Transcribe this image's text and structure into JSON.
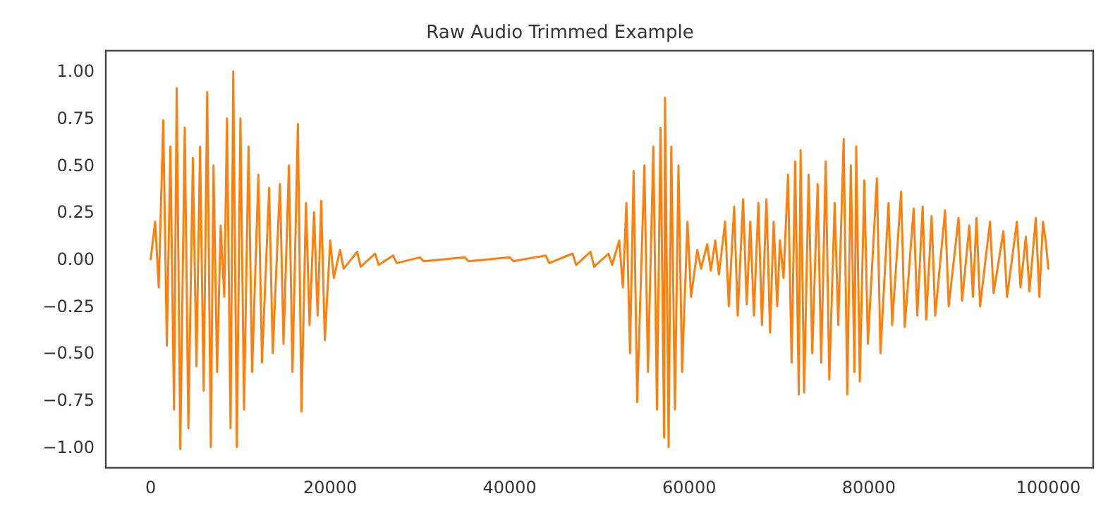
{
  "chart_data": {
    "type": "line",
    "title": "Raw Audio Trimmed Example",
    "x": [
      0,
      500,
      900,
      1400,
      1800,
      2200,
      2600,
      2900,
      3300,
      3800,
      4200,
      4700,
      5100,
      5500,
      5900,
      6300,
      6700,
      7000,
      7400,
      7800,
      8200,
      8500,
      8900,
      9200,
      9600,
      10000,
      10400,
      10900,
      11300,
      12000,
      12400,
      13200,
      13600,
      14400,
      14800,
      15400,
      15800,
      16400,
      16800,
      17300,
      17700,
      18200,
      18600,
      19000,
      19400,
      20000,
      20400,
      21100,
      21500,
      23000,
      23400,
      25000,
      25400,
      27000,
      27400,
      30000,
      30400,
      35000,
      35400,
      40000,
      40400,
      44000,
      44400,
      47000,
      47400,
      49000,
      49400,
      51000,
      51400,
      52200,
      52600,
      53000,
      53400,
      53800,
      54200,
      55000,
      55400,
      56000,
      56400,
      56800,
      57200,
      57300,
      57700,
      58000,
      58400,
      58800,
      59200,
      59800,
      60200,
      60900,
      61300,
      62000,
      62400,
      62900,
      63300,
      64000,
      64400,
      65000,
      65400,
      66000,
      66400,
      66800,
      67200,
      67700,
      68100,
      68600,
      69000,
      69400,
      69800,
      70100,
      70500,
      71000,
      71400,
      71800,
      72200,
      72400,
      72800,
      73300,
      73700,
      74300,
      74700,
      75200,
      75600,
      76200,
      76600,
      77200,
      77600,
      78000,
      78400,
      78600,
      79000,
      79500,
      79900,
      80900,
      81300,
      82200,
      82600,
      83600,
      84000,
      85000,
      85400,
      86000,
      86400,
      87000,
      87400,
      88500,
      88900,
      90000,
      90400,
      91200,
      91600,
      92000,
      92400,
      93500,
      93900,
      95000,
      95400,
      96500,
      96900,
      97500,
      97900,
      98600,
      99000,
      99400,
      99700,
      100000
    ],
    "series": [
      {
        "color": "#fd7f0e",
        "values": [
          0,
          0.2,
          -0.15,
          0.74,
          -0.46,
          0.6,
          -0.8,
          0.91,
          -1.01,
          0.7,
          -0.9,
          0.54,
          -0.57,
          0.6,
          -0.7,
          0.89,
          -1.0,
          0.5,
          -0.6,
          0.18,
          -0.2,
          0.75,
          -0.9,
          1.0,
          -1.0,
          0.75,
          -0.8,
          0.6,
          -0.6,
          0.45,
          -0.55,
          0.38,
          -0.5,
          0.4,
          -0.45,
          0.5,
          -0.6,
          0.72,
          -0.81,
          0.3,
          -0.35,
          0.25,
          -0.3,
          0.31,
          -0.43,
          0.1,
          -0.1,
          0.05,
          -0.05,
          0.04,
          -0.04,
          0.03,
          -0.03,
          0.02,
          -0.02,
          0.01,
          -0.01,
          0.01,
          -0.01,
          0.01,
          -0.01,
          0.02,
          -0.02,
          0.03,
          -0.03,
          0.04,
          -0.04,
          0.03,
          -0.03,
          0.1,
          -0.15,
          0.3,
          -0.5,
          0.47,
          -0.76,
          0.5,
          -0.6,
          0.6,
          -0.8,
          0.7,
          -0.95,
          0.86,
          -1.0,
          0.6,
          -0.8,
          0.5,
          -0.6,
          0.2,
          -0.2,
          0.05,
          -0.05,
          0.08,
          -0.06,
          0.1,
          -0.08,
          0.2,
          -0.25,
          0.28,
          -0.3,
          0.32,
          -0.24,
          0.2,
          -0.3,
          0.3,
          -0.35,
          0.32,
          -0.39,
          0.2,
          -0.25,
          0.1,
          -0.1,
          0.45,
          -0.55,
          0.52,
          -0.72,
          0.58,
          -0.71,
          0.45,
          -0.5,
          0.4,
          -0.55,
          0.52,
          -0.64,
          0.3,
          -0.35,
          0.64,
          -0.72,
          0.5,
          -0.6,
          0.6,
          -0.65,
          0.42,
          -0.45,
          0.43,
          -0.5,
          0.3,
          -0.35,
          0.36,
          -0.36,
          0.27,
          -0.3,
          0.28,
          -0.32,
          0.23,
          -0.3,
          0.26,
          -0.25,
          0.22,
          -0.22,
          0.18,
          -0.2,
          0.22,
          -0.25,
          0.2,
          -0.18,
          0.15,
          -0.2,
          0.2,
          -0.15,
          0.12,
          -0.17,
          0.22,
          -0.2,
          0.2,
          0.1,
          -0.05
        ]
      }
    ],
    "xlim": [
      -5000,
      105000
    ],
    "xticks": [
      0,
      20000,
      40000,
      60000,
      80000,
      100000
    ],
    "ylim": [
      -1.11,
      1.11
    ],
    "yticks": [
      {
        "value": -1,
        "label": "−1.00"
      },
      {
        "value": -0.75,
        "label": "−0.75"
      },
      {
        "value": -0.5,
        "label": "−0.50"
      },
      {
        "value": -0.25,
        "label": "−0.25"
      },
      {
        "value": 0,
        "label": "0.00"
      },
      {
        "value": 0.25,
        "label": "0.25"
      },
      {
        "value": 0.5,
        "label": "0.50"
      },
      {
        "value": 0.75,
        "label": "0.75"
      },
      {
        "value": 1,
        "label": "1.00"
      }
    ],
    "grid": false,
    "marker": "none",
    "line_style": "solid"
  }
}
